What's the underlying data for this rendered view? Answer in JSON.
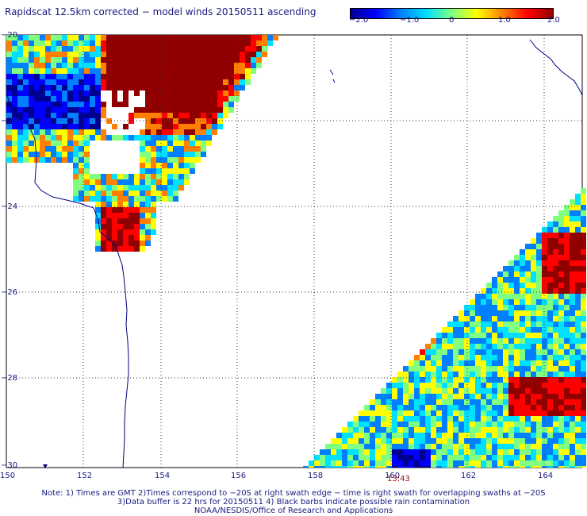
{
  "title": "Rapidscat 12.5km corrected − model winds 20150511 ascending",
  "colorbar": {
    "ticks": [
      "−2.0",
      "−1.0",
      "0",
      "1.0",
      "2.0"
    ],
    "colors": [
      "#000090",
      "#0000ff",
      "#0080ff",
      "#00e0ff",
      "#80ff80",
      "#ffff00",
      "#ff8000",
      "#ff0000",
      "#900000"
    ]
  },
  "map": {
    "lon_labels": [
      "150",
      "152",
      "154",
      "156",
      "158",
      "160",
      "162",
      "164"
    ],
    "lat_labels": [
      "−20",
      "−22",
      "−24",
      "−26",
      "−28",
      "−30"
    ],
    "grid": "dotted",
    "coastline_color": "#000080"
  },
  "time_label": "13:43",
  "notes": [
    "Note: 1) Times are GMT 2)Times correspond to −20S at right swath edge − time is right swath for overlapping swaths at −20S",
    "3)Data buffer is 22 hrs for 20150511 4) Black barbs indicate possible rain contamination",
    "NOAA/NESDIS/Office of Research and Applications"
  ]
}
